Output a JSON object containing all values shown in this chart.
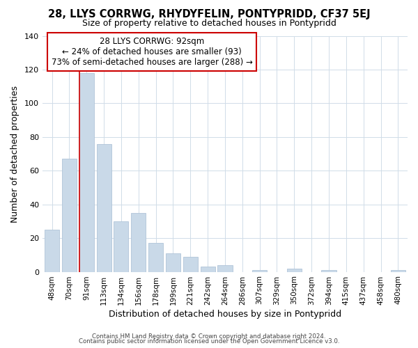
{
  "title": "28, LLYS CORRWG, RHYDYFELIN, PONTYPRIDD, CF37 5EJ",
  "subtitle": "Size of property relative to detached houses in Pontypridd",
  "xlabel": "Distribution of detached houses by size in Pontypridd",
  "ylabel": "Number of detached properties",
  "bar_color": "#c9d9e8",
  "bar_edge_color": "#b0c4d8",
  "highlight_color": "#cc0000",
  "categories": [
    "48sqm",
    "70sqm",
    "91sqm",
    "113sqm",
    "134sqm",
    "156sqm",
    "178sqm",
    "199sqm",
    "221sqm",
    "242sqm",
    "264sqm",
    "286sqm",
    "307sqm",
    "329sqm",
    "350sqm",
    "372sqm",
    "394sqm",
    "415sqm",
    "437sqm",
    "458sqm",
    "480sqm"
  ],
  "values": [
    25,
    67,
    118,
    76,
    30,
    35,
    17,
    11,
    9,
    3,
    4,
    0,
    1,
    0,
    2,
    0,
    1,
    0,
    0,
    0,
    1
  ],
  "highlight_index": 2,
  "ylim": [
    0,
    140
  ],
  "yticks": [
    0,
    20,
    40,
    60,
    80,
    100,
    120,
    140
  ],
  "annotation_title": "28 LLYS CORRWG: 92sqm",
  "annotation_line1": "← 24% of detached houses are smaller (93)",
  "annotation_line2": "73% of semi-detached houses are larger (288) →",
  "footer_line1": "Contains HM Land Registry data © Crown copyright and database right 2024.",
  "footer_line2": "Contains public sector information licensed under the Open Government Licence v3.0.",
  "background_color": "#ffffff",
  "grid_color": "#d0dce8"
}
